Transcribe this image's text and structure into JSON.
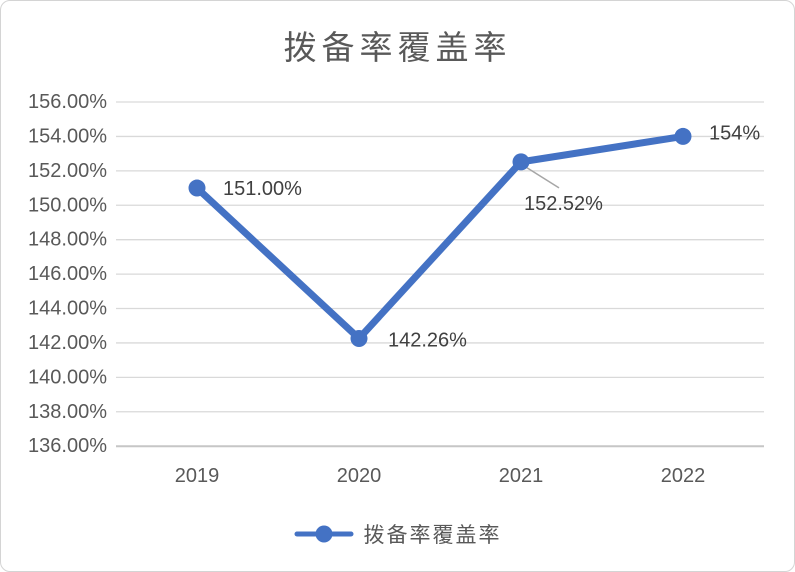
{
  "chart": {
    "title": "拨备率覆盖率",
    "legend_label": "拨备率覆盖率"
  },
  "chart_data": {
    "type": "line",
    "title": "拨备率覆盖率",
    "categories": [
      "2019",
      "2020",
      "2021",
      "2022"
    ],
    "series": [
      {
        "name": "拨备率覆盖率",
        "values": [
          151.0,
          142.26,
          152.52,
          154
        ],
        "labels": [
          "151.00%",
          "142.26%",
          "152.52%",
          "154%"
        ],
        "color": "#4472c4",
        "marker": "circle"
      }
    ],
    "xlabel": "",
    "ylabel": "",
    "ylim": [
      136,
      156
    ],
    "ytick_step": 2,
    "ytick_labels": [
      "156.00%",
      "154.00%",
      "152.00%",
      "150.00%",
      "148.00%",
      "146.00%",
      "144.00%",
      "142.00%",
      "140.00%",
      "138.00%",
      "136.00%"
    ],
    "grid": true,
    "legend_position": "bottom",
    "colors": {
      "line": "#4472c4",
      "gridline": "#d9d9d9",
      "axis_line": "#c6c6c6",
      "axis_text": "#595959",
      "title_text": "#595959",
      "data_label_text": "#404040",
      "leader_line": "#a6a6a6",
      "border": "#d4d4d4",
      "background": "#ffffff"
    }
  }
}
